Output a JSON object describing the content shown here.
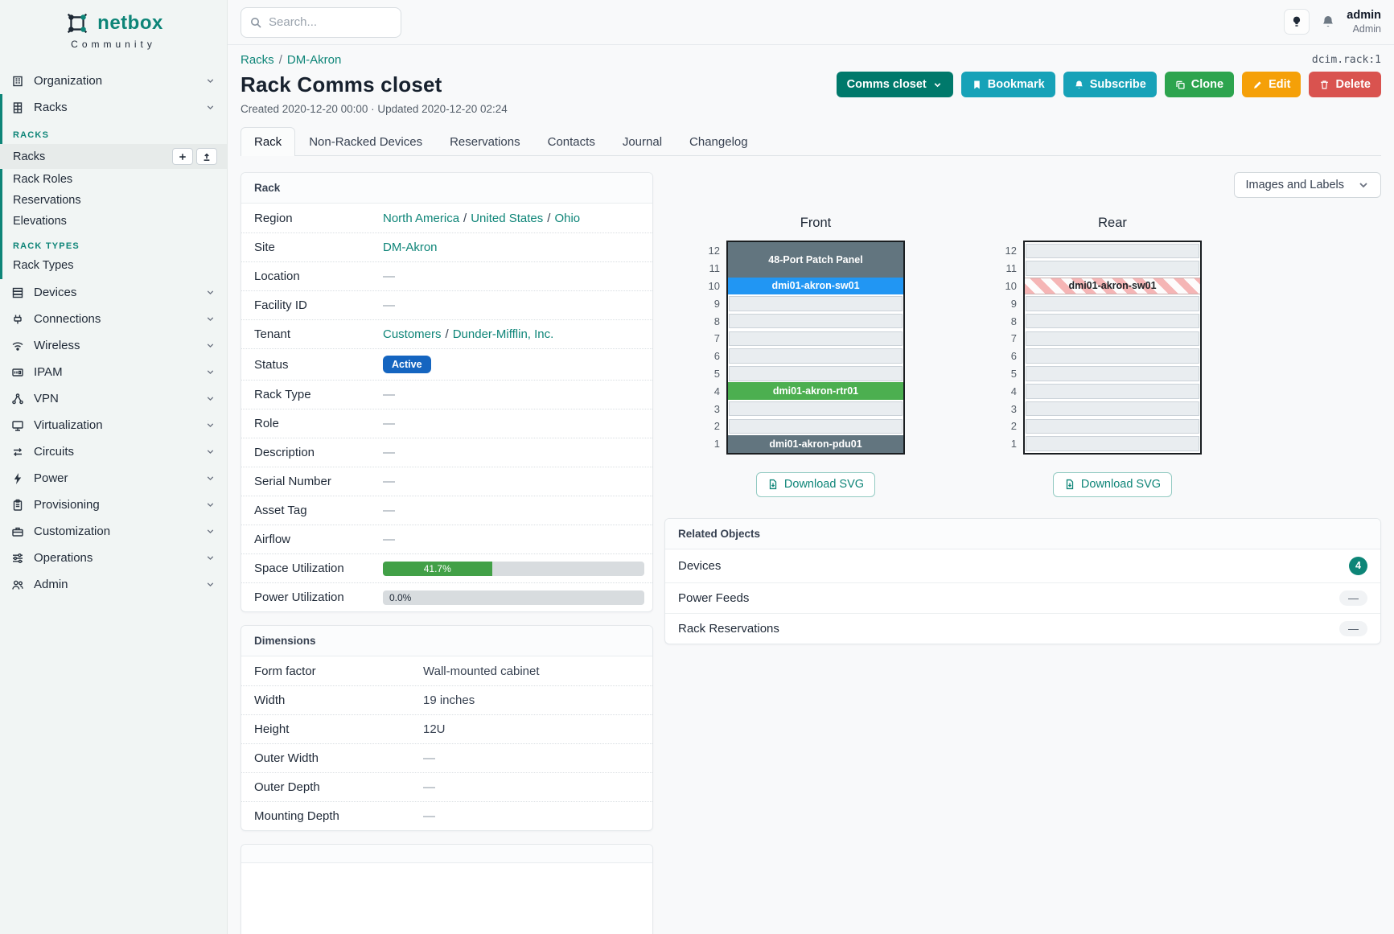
{
  "brand": {
    "name": "netbox",
    "tagline": "Community"
  },
  "topbar": {
    "search_placeholder": "Search...",
    "user_name": "admin",
    "user_role": "Admin"
  },
  "sidebar": {
    "organization": {
      "label": "Organization",
      "icon": "organization"
    },
    "racks_parent": {
      "label": "Racks",
      "icon": "racks"
    },
    "racks_sections": [
      {
        "heading": "RACKS",
        "links": [
          {
            "label": "Racks",
            "active": true,
            "actions": [
              "add",
              "import"
            ]
          },
          {
            "label": "Rack Roles"
          },
          {
            "label": "Reservations"
          },
          {
            "label": "Elevations"
          }
        ]
      },
      {
        "heading": "RACK TYPES",
        "links": [
          {
            "label": "Rack Types"
          }
        ]
      }
    ],
    "items": [
      {
        "label": "Devices",
        "icon": "devices"
      },
      {
        "label": "Connections",
        "icon": "connections"
      },
      {
        "label": "Wireless",
        "icon": "wireless"
      },
      {
        "label": "IPAM",
        "icon": "ipam"
      },
      {
        "label": "VPN",
        "icon": "vpn"
      },
      {
        "label": "Virtualization",
        "icon": "virtualization"
      },
      {
        "label": "Circuits",
        "icon": "circuits"
      },
      {
        "label": "Power",
        "icon": "power"
      },
      {
        "label": "Provisioning",
        "icon": "provisioning"
      },
      {
        "label": "Customization",
        "icon": "customization"
      },
      {
        "label": "Operations",
        "icon": "operations"
      },
      {
        "label": "Admin",
        "icon": "admin"
      }
    ]
  },
  "page": {
    "breadcrumb": [
      {
        "label": "Racks"
      },
      {
        "label": "DM-Akron"
      }
    ],
    "object_ref": "dcim.rack:1",
    "title": "Rack Comms closet",
    "meta": "Created 2020-12-20 00:00 · Updated 2020-12-20 02:24",
    "actions": {
      "context": "Comms closet",
      "bookmark": "Bookmark",
      "subscribe": "Subscribe",
      "clone": "Clone",
      "edit": "Edit",
      "delete": "Delete"
    },
    "tabs": [
      {
        "label": "Rack",
        "active": true
      },
      {
        "label": "Non-Racked Devices"
      },
      {
        "label": "Reservations"
      },
      {
        "label": "Contacts"
      },
      {
        "label": "Journal"
      },
      {
        "label": "Changelog"
      }
    ]
  },
  "rack_panel": {
    "title": "Rack",
    "rows": [
      {
        "label": "Region",
        "type": "links",
        "parts": [
          "North America",
          "United States",
          "Ohio"
        ]
      },
      {
        "label": "Site",
        "type": "links",
        "parts": [
          "DM-Akron"
        ]
      },
      {
        "label": "Location",
        "type": "empty",
        "value": "—"
      },
      {
        "label": "Facility ID",
        "type": "empty",
        "value": "—"
      },
      {
        "label": "Tenant",
        "type": "links",
        "parts": [
          "Customers",
          "Dunder-Mifflin, Inc."
        ]
      },
      {
        "label": "Status",
        "type": "badge",
        "value": "Active",
        "color": "#1565c0"
      },
      {
        "label": "Rack Type",
        "type": "empty",
        "value": "—"
      },
      {
        "label": "Role",
        "type": "empty",
        "value": "—"
      },
      {
        "label": "Description",
        "type": "empty",
        "value": "—"
      },
      {
        "label": "Serial Number",
        "type": "empty",
        "value": "—"
      },
      {
        "label": "Asset Tag",
        "type": "empty",
        "value": "—"
      },
      {
        "label": "Airflow",
        "type": "empty",
        "value": "—"
      },
      {
        "label": "Space Utilization",
        "type": "progress",
        "value": 41.7,
        "text": "41.7%",
        "color": "#42a047"
      },
      {
        "label": "Power Utilization",
        "type": "progress",
        "value": 0,
        "text": "0.0%",
        "color": "#42a047"
      }
    ]
  },
  "dimensions_panel": {
    "title": "Dimensions",
    "rows": [
      {
        "label": "Form factor",
        "value": "Wall-mounted cabinet"
      },
      {
        "label": "Width",
        "value": "19 inches"
      },
      {
        "label": "Height",
        "value": "12U"
      },
      {
        "label": "Outer Width",
        "value": "—"
      },
      {
        "label": "Outer Depth",
        "value": "—"
      },
      {
        "label": "Mounting Depth",
        "value": "—"
      }
    ]
  },
  "elevation": {
    "view_select": "Images and Labels",
    "download_label": "Download SVG",
    "unit_count": 12,
    "front": {
      "title": "Front",
      "units": [
        {
          "top_u": 12,
          "span": 2,
          "label": "48-Port Patch Panel",
          "color": "#62757f",
          "text_color": "#ffffff"
        },
        {
          "top_u": 10,
          "span": 1,
          "label": "dmi01-akron-sw01",
          "color": "#2196f3",
          "text_color": "#ffffff"
        },
        {
          "top_u": 4,
          "span": 1,
          "label": "dmi01-akron-rtr01",
          "color": "#4caf50",
          "text_color": "#ffffff"
        },
        {
          "top_u": 1,
          "span": 1,
          "label": "dmi01-akron-pdu01",
          "color": "#62757f",
          "text_color": "#ffffff"
        }
      ]
    },
    "rear": {
      "title": "Rear",
      "units": [
        {
          "top_u": 10,
          "span": 1,
          "label": "dmi01-akron-sw01",
          "pattern": "stripes",
          "text_color": "#212529"
        }
      ]
    }
  },
  "related_objects": {
    "title": "Related Objects",
    "rows": [
      {
        "label": "Devices",
        "count": "4"
      },
      {
        "label": "Power Feeds",
        "count": null
      },
      {
        "label": "Rack Reservations",
        "count": null
      }
    ]
  }
}
